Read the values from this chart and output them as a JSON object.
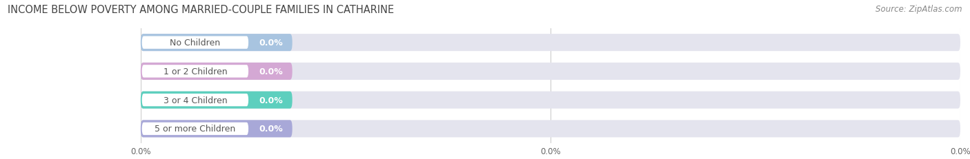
{
  "title": "INCOME BELOW POVERTY AMONG MARRIED-COUPLE FAMILIES IN CATHARINE",
  "source": "Source: ZipAtlas.com",
  "categories": [
    "No Children",
    "1 or 2 Children",
    "3 or 4 Children",
    "5 or more Children"
  ],
  "values": [
    0.0,
    0.0,
    0.0,
    0.0
  ],
  "bar_colors": [
    "#a8c4e0",
    "#d4a8d4",
    "#5dcfbe",
    "#a8a8d8"
  ],
  "background_color": "#ffffff",
  "bar_bg_color": "#e4e4ee",
  "title_fontsize": 10.5,
  "source_fontsize": 8.5,
  "cat_fontsize": 9,
  "val_fontsize": 9,
  "xtick_fontsize": 8.5,
  "xtick_labels": [
    "0.0%",
    "0.0%",
    "0.0%"
  ],
  "grid_color": "#cccccc"
}
